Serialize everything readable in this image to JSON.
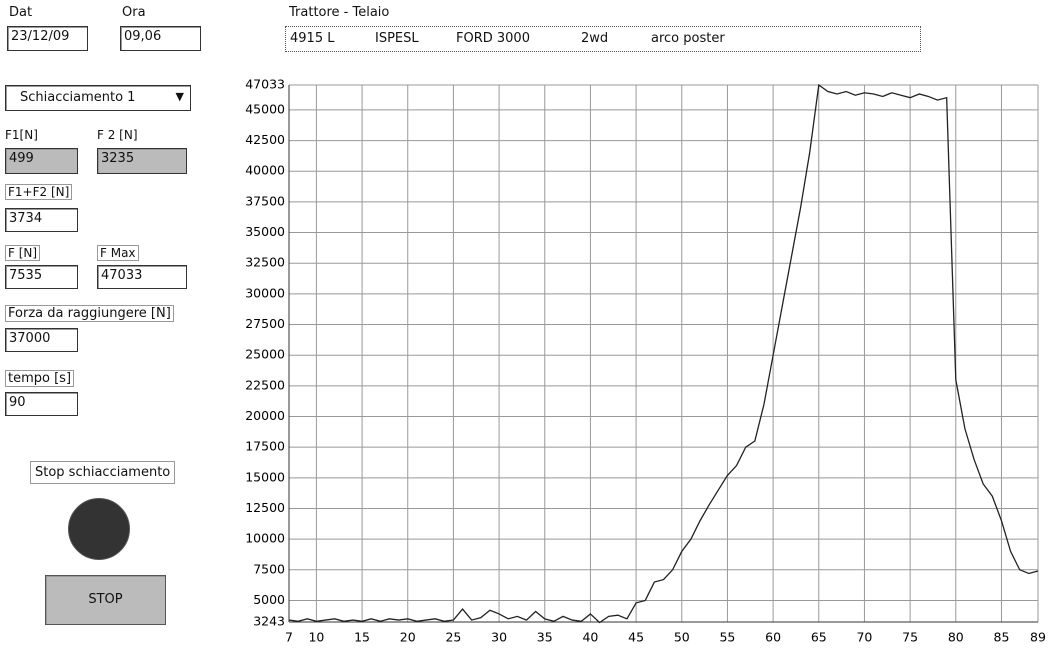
{
  "header": {
    "date_label": "Dat",
    "date": "23/12/09",
    "time_label": "Ora",
    "time": "09,06",
    "title": "Trattore - Telaio",
    "info": [
      "4915 L",
      "ISPESL",
      "FORD 3000",
      "2wd",
      "arco poster"
    ]
  },
  "controls": {
    "mode": "Schiacciamento 1",
    "f1_label": "F1[N]",
    "f1": "499",
    "f2_label": "F 2 [N]",
    "f2": "3235",
    "sum_label": "F1+F2 [N]",
    "sum": "3734",
    "f_label": "F [N]",
    "f": "7535",
    "fmax_label": "F Max",
    "fmax": "47033",
    "target_label": "Forza da raggiungere [N]",
    "target": "37000",
    "time_label": "tempo [s]",
    "time": "90",
    "stop_label": "Stop schiacciamento",
    "stop_button": "STOP"
  },
  "chart_data": {
    "type": "line",
    "color": "#222222",
    "grid": true,
    "x": [
      7,
      8,
      9,
      10,
      11,
      12,
      13,
      14,
      15,
      16,
      17,
      18,
      19,
      20,
      21,
      22,
      23,
      24,
      25,
      26,
      27,
      28,
      29,
      30,
      31,
      32,
      33,
      34,
      35,
      36,
      37,
      38,
      39,
      40,
      41,
      42,
      43,
      44,
      45,
      46,
      47,
      48,
      49,
      50,
      51,
      52,
      53,
      54,
      55,
      56,
      57,
      58,
      59,
      60,
      61,
      62,
      63,
      64,
      65,
      66,
      67,
      68,
      69,
      70,
      71,
      72,
      73,
      74,
      75,
      76,
      77,
      78,
      79,
      80,
      81,
      82,
      83,
      84,
      85,
      86,
      87,
      88,
      89
    ],
    "values": [
      3400,
      3300,
      3500,
      3300,
      3400,
      3500,
      3300,
      3400,
      3300,
      3500,
      3300,
      3500,
      3400,
      3500,
      3300,
      3400,
      3500,
      3300,
      3400,
      4300,
      3400,
      3600,
      4200,
      3900,
      3500,
      3700,
      3400,
      4100,
      3500,
      3300,
      3700,
      3400,
      3300,
      3900,
      3200,
      3700,
      3800,
      3500,
      4800,
      5000,
      6500,
      6700,
      7500,
      9000,
      10000,
      11500,
      12800,
      14000,
      15200,
      16000,
      17500,
      18000,
      21000,
      25000,
      29000,
      33000,
      37000,
      41500,
      47033,
      46500,
      46300,
      46500,
      46200,
      46400,
      46300,
      46100,
      46400,
      46200,
      46000,
      46300,
      46100,
      45800,
      46000,
      23000,
      19000,
      16500,
      14500,
      13500,
      11500,
      9000,
      7500,
      7200,
      7400
    ],
    "xlim": [
      7,
      89
    ],
    "xticks": [
      7,
      10,
      15,
      20,
      25,
      30,
      35,
      40,
      45,
      50,
      55,
      60,
      65,
      70,
      75,
      80,
      85,
      89
    ],
    "ylim": [
      3243,
      47033
    ],
    "yticks": [
      3243,
      5000,
      7500,
      10000,
      12500,
      15000,
      17500,
      20000,
      22500,
      25000,
      27500,
      30000,
      32500,
      35000,
      37500,
      40000,
      42500,
      45000,
      47033
    ]
  }
}
